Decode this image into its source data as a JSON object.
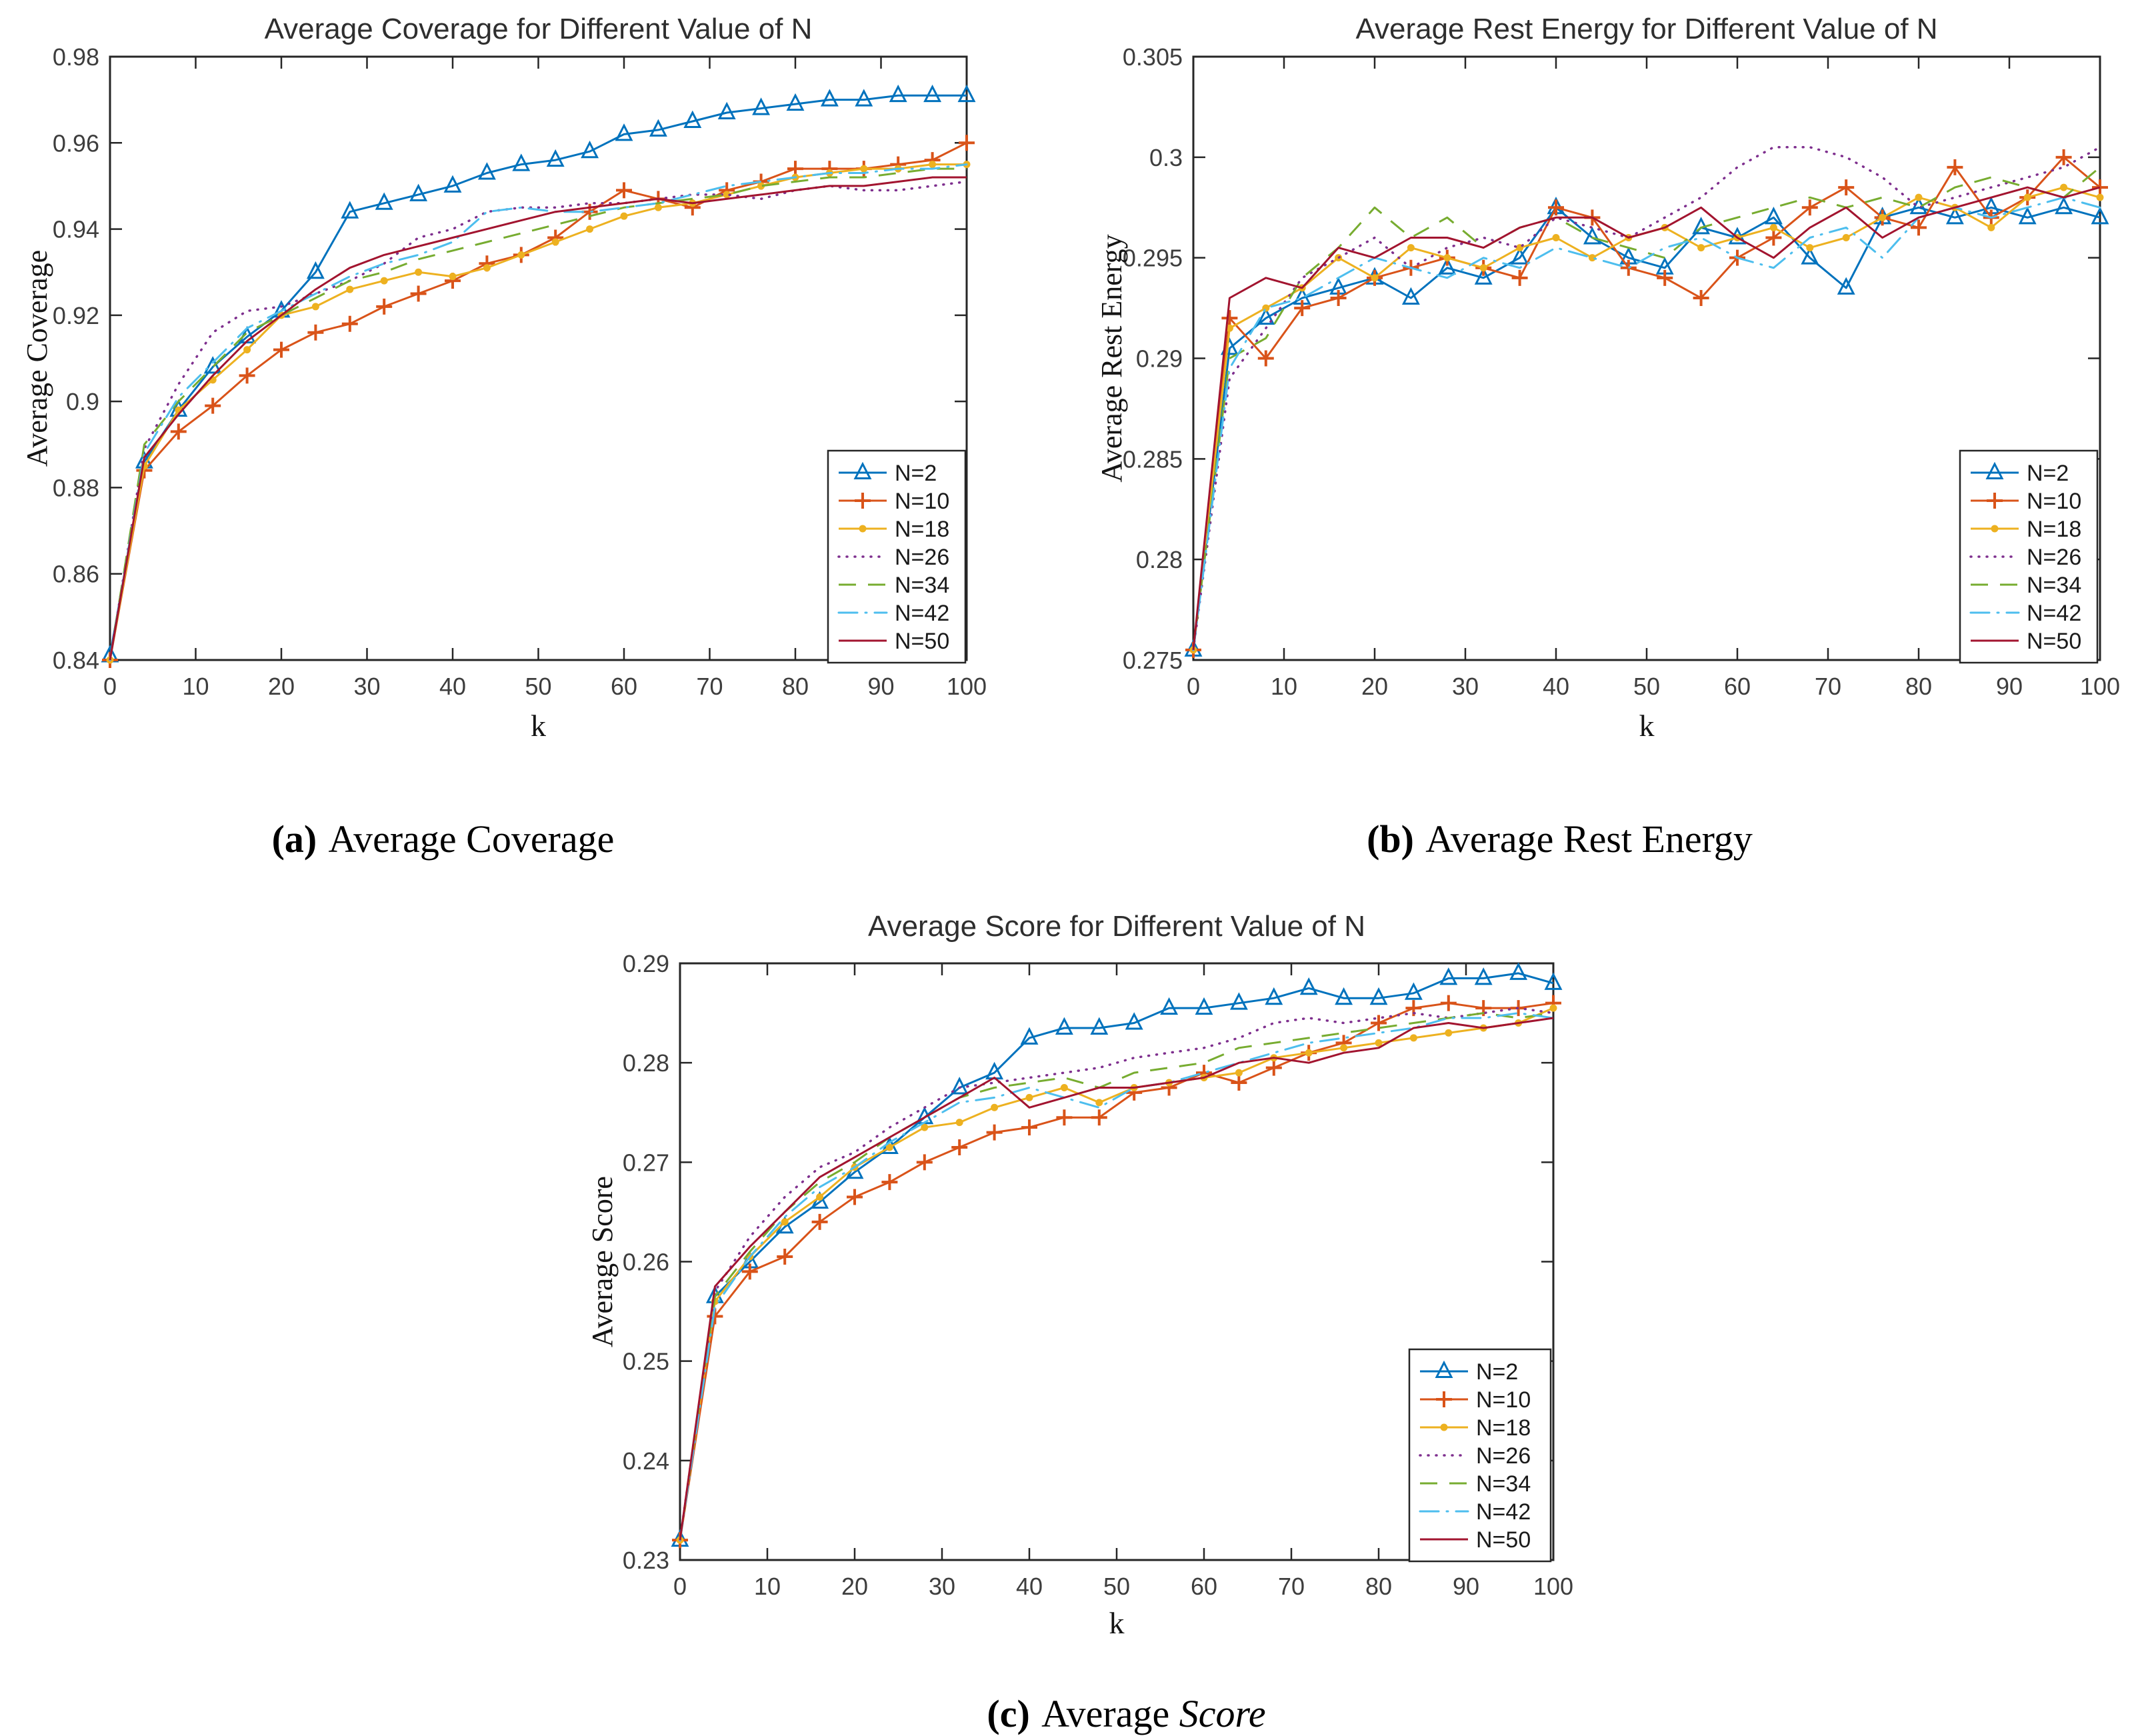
{
  "page": {
    "background": "#ffffff"
  },
  "chart_data": [
    {
      "type": "line",
      "title": "Average Coverage for Different Value of N",
      "xlabel": "k",
      "ylabel": "Average Coverage",
      "caption": {
        "label": "(a)",
        "text": " Average Coverage",
        "italic": ""
      },
      "xlim": [
        0,
        100
      ],
      "ylim": [
        0.84,
        0.98
      ],
      "xticks": [
        0,
        10,
        20,
        30,
        40,
        50,
        60,
        70,
        80,
        90,
        100
      ],
      "yticks": [
        0.84,
        0.86,
        0.88,
        0.9,
        0.92,
        0.94,
        0.96,
        0.98
      ],
      "ytick_labels": [
        "0.84",
        "0.86",
        "0.88",
        "0.9",
        "0.92",
        "0.94",
        "0.96",
        "0.98"
      ],
      "grid": false,
      "legend_position": "lower right inset",
      "x": [
        0,
        4,
        8,
        12,
        16,
        20,
        24,
        28,
        32,
        36,
        40,
        44,
        48,
        52,
        56,
        60,
        64,
        68,
        72,
        76,
        80,
        84,
        88,
        92,
        96,
        100
      ],
      "series": [
        {
          "name": "N=2",
          "color": "#0072BD",
          "line": "solid",
          "marker": "triangle",
          "values": [
            0.841,
            0.886,
            0.898,
            0.908,
            0.915,
            0.921,
            0.93,
            0.944,
            0.946,
            0.948,
            0.95,
            0.953,
            0.955,
            0.956,
            0.958,
            0.962,
            0.963,
            0.965,
            0.967,
            0.968,
            0.969,
            0.97,
            0.97,
            0.971,
            0.971,
            0.971
          ]
        },
        {
          "name": "N=10",
          "color": "#D95319",
          "line": "solid",
          "marker": "plus",
          "values": [
            0.84,
            0.884,
            0.893,
            0.899,
            0.906,
            0.912,
            0.916,
            0.918,
            0.922,
            0.925,
            0.928,
            0.932,
            0.934,
            0.938,
            0.944,
            0.949,
            0.947,
            0.945,
            0.949,
            0.951,
            0.954,
            0.954,
            0.954,
            0.955,
            0.956,
            0.96
          ]
        },
        {
          "name": "N=18",
          "color": "#EDB120",
          "line": "solid",
          "marker": "dot",
          "values": [
            0.84,
            0.885,
            0.898,
            0.905,
            0.912,
            0.92,
            0.922,
            0.926,
            0.928,
            0.93,
            0.929,
            0.931,
            0.934,
            0.937,
            0.94,
            0.943,
            0.945,
            0.946,
            0.948,
            0.95,
            0.952,
            0.953,
            0.954,
            0.954,
            0.955,
            0.955
          ]
        },
        {
          "name": "N=26",
          "color": "#7E2F8E",
          "line": "dotted",
          "marker": "none",
          "values": [
            0.84,
            0.889,
            0.904,
            0.916,
            0.921,
            0.922,
            0.925,
            0.928,
            0.932,
            0.938,
            0.94,
            0.944,
            0.945,
            0.945,
            0.946,
            0.946,
            0.947,
            0.948,
            0.948,
            0.947,
            0.949,
            0.95,
            0.949,
            0.949,
            0.95,
            0.951
          ]
        },
        {
          "name": "N=34",
          "color": "#77AC30",
          "line": "dashed",
          "marker": "none",
          "values": [
            0.84,
            0.89,
            0.9,
            0.908,
            0.916,
            0.92,
            0.924,
            0.928,
            0.93,
            0.933,
            0.935,
            0.937,
            0.939,
            0.941,
            0.943,
            0.945,
            0.946,
            0.947,
            0.948,
            0.95,
            0.951,
            0.952,
            0.952,
            0.953,
            0.954,
            0.954
          ]
        },
        {
          "name": "N=42",
          "color": "#4DBEEE",
          "line": "dashdot",
          "marker": "none",
          "values": [
            0.84,
            0.888,
            0.901,
            0.909,
            0.917,
            0.921,
            0.925,
            0.929,
            0.932,
            0.934,
            0.937,
            0.944,
            0.945,
            0.944,
            0.944,
            0.945,
            0.946,
            0.948,
            0.95,
            0.951,
            0.952,
            0.953,
            0.953,
            0.954,
            0.954,
            0.955
          ]
        },
        {
          "name": "N=50",
          "color": "#A2142F",
          "line": "solid",
          "marker": "none",
          "values": [
            0.84,
            0.887,
            0.897,
            0.906,
            0.914,
            0.92,
            0.926,
            0.931,
            0.934,
            0.936,
            0.938,
            0.94,
            0.942,
            0.944,
            0.945,
            0.946,
            0.947,
            0.946,
            0.947,
            0.948,
            0.949,
            0.95,
            0.95,
            0.951,
            0.952,
            0.952
          ]
        }
      ]
    },
    {
      "type": "line",
      "title": "Average Rest Energy for Different Value of N",
      "xlabel": "k",
      "ylabel": "Average Rest Energy",
      "caption": {
        "label": "(b)",
        "text": " Average Rest Energy",
        "italic": ""
      },
      "xlim": [
        0,
        100
      ],
      "ylim": [
        0.275,
        0.305
      ],
      "xticks": [
        0,
        10,
        20,
        30,
        40,
        50,
        60,
        70,
        80,
        90,
        100
      ],
      "yticks": [
        0.275,
        0.28,
        0.285,
        0.29,
        0.295,
        0.3,
        0.305
      ],
      "ytick_labels": [
        "0.275",
        "0.28",
        "0.285",
        "0.29",
        "0.295",
        "0.3",
        "0.305"
      ],
      "grid": false,
      "legend_position": "lower right inset",
      "x": [
        0,
        4,
        8,
        12,
        16,
        20,
        24,
        28,
        32,
        36,
        40,
        44,
        48,
        52,
        56,
        60,
        64,
        68,
        72,
        76,
        80,
        84,
        88,
        92,
        96,
        100
      ],
      "series": [
        {
          "name": "N=2",
          "color": "#0072BD",
          "line": "solid",
          "marker": "triangle",
          "values": [
            0.2755,
            0.2905,
            0.292,
            0.293,
            0.2935,
            0.294,
            0.293,
            0.2945,
            0.294,
            0.295,
            0.2975,
            0.296,
            0.295,
            0.2945,
            0.2965,
            0.296,
            0.297,
            0.295,
            0.2935,
            0.297,
            0.2975,
            0.297,
            0.2975,
            0.297,
            0.2975,
            0.297
          ]
        },
        {
          "name": "N=10",
          "color": "#D95319",
          "line": "solid",
          "marker": "plus",
          "values": [
            0.2755,
            0.292,
            0.29,
            0.2925,
            0.293,
            0.294,
            0.2945,
            0.295,
            0.2945,
            0.294,
            0.2975,
            0.297,
            0.2945,
            0.294,
            0.293,
            0.295,
            0.296,
            0.2975,
            0.2985,
            0.297,
            0.2965,
            0.2995,
            0.297,
            0.298,
            0.3,
            0.2985
          ]
        },
        {
          "name": "N=18",
          "color": "#EDB120",
          "line": "solid",
          "marker": "dot",
          "values": [
            0.2755,
            0.2915,
            0.2925,
            0.2935,
            0.295,
            0.294,
            0.2955,
            0.295,
            0.2945,
            0.2955,
            0.296,
            0.295,
            0.296,
            0.2965,
            0.2955,
            0.296,
            0.2965,
            0.2955,
            0.296,
            0.297,
            0.298,
            0.2975,
            0.2965,
            0.298,
            0.2985,
            0.298
          ]
        },
        {
          "name": "N=26",
          "color": "#7E2F8E",
          "line": "dotted",
          "marker": "none",
          "values": [
            0.2755,
            0.289,
            0.2915,
            0.294,
            0.295,
            0.296,
            0.2945,
            0.2955,
            0.296,
            0.2955,
            0.297,
            0.2965,
            0.296,
            0.297,
            0.298,
            0.2995,
            0.3005,
            0.3005,
            0.3,
            0.299,
            0.2975,
            0.298,
            0.2985,
            0.299,
            0.2995,
            0.3005
          ]
        },
        {
          "name": "N=34",
          "color": "#77AC30",
          "line": "dashed",
          "marker": "none",
          "values": [
            0.2755,
            0.29,
            0.291,
            0.294,
            0.2955,
            0.2975,
            0.296,
            0.297,
            0.2955,
            0.2965,
            0.297,
            0.296,
            0.2955,
            0.295,
            0.2965,
            0.297,
            0.2975,
            0.298,
            0.2975,
            0.298,
            0.2975,
            0.2985,
            0.299,
            0.2985,
            0.298,
            0.2995
          ]
        },
        {
          "name": "N=42",
          "color": "#4DBEEE",
          "line": "dashdot",
          "marker": "none",
          "values": [
            0.2755,
            0.2895,
            0.2925,
            0.293,
            0.294,
            0.295,
            0.2945,
            0.294,
            0.295,
            0.2945,
            0.2955,
            0.295,
            0.2945,
            0.2955,
            0.296,
            0.295,
            0.2945,
            0.296,
            0.2965,
            0.295,
            0.297,
            0.2975,
            0.297,
            0.2975,
            0.298,
            0.2975
          ]
        },
        {
          "name": "N=50",
          "color": "#A2142F",
          "line": "solid",
          "marker": "none",
          "values": [
            0.2755,
            0.293,
            0.294,
            0.2935,
            0.2955,
            0.295,
            0.296,
            0.296,
            0.2955,
            0.2965,
            0.297,
            0.297,
            0.296,
            0.2965,
            0.2975,
            0.296,
            0.295,
            0.2965,
            0.2975,
            0.296,
            0.297,
            0.2975,
            0.298,
            0.2985,
            0.298,
            0.2985
          ]
        }
      ]
    },
    {
      "type": "line",
      "title": "Average Score for Different Value of N",
      "xlabel": "k",
      "ylabel": "Average Score",
      "caption": {
        "label": "(c)",
        "text": " Average ",
        "italic": "Score"
      },
      "xlim": [
        0,
        100
      ],
      "ylim": [
        0.23,
        0.29
      ],
      "xticks": [
        0,
        10,
        20,
        30,
        40,
        50,
        60,
        70,
        80,
        90,
        100
      ],
      "yticks": [
        0.23,
        0.24,
        0.25,
        0.26,
        0.27,
        0.28,
        0.29
      ],
      "ytick_labels": [
        "0.23",
        "0.24",
        "0.25",
        "0.26",
        "0.27",
        "0.28",
        "0.29"
      ],
      "grid": false,
      "legend_position": "lower right inset",
      "x": [
        0,
        4,
        8,
        12,
        16,
        20,
        24,
        28,
        32,
        36,
        40,
        44,
        48,
        52,
        56,
        60,
        64,
        68,
        72,
        76,
        80,
        84,
        88,
        92,
        96,
        100
      ],
      "series": [
        {
          "name": "N=2",
          "color": "#0072BD",
          "line": "solid",
          "marker": "triangle",
          "values": [
            0.232,
            0.2565,
            0.26,
            0.2635,
            0.266,
            0.269,
            0.2715,
            0.2745,
            0.2775,
            0.279,
            0.2825,
            0.2835,
            0.2835,
            0.284,
            0.2855,
            0.2855,
            0.286,
            0.2865,
            0.2875,
            0.2865,
            0.2865,
            0.287,
            0.2885,
            0.2885,
            0.289,
            0.288
          ]
        },
        {
          "name": "N=10",
          "color": "#D95319",
          "line": "solid",
          "marker": "plus",
          "values": [
            0.232,
            0.2545,
            0.259,
            0.2605,
            0.264,
            0.2665,
            0.268,
            0.27,
            0.2715,
            0.273,
            0.2735,
            0.2745,
            0.2745,
            0.277,
            0.2775,
            0.279,
            0.278,
            0.2795,
            0.281,
            0.282,
            0.284,
            0.2855,
            0.286,
            0.2855,
            0.2855,
            0.286
          ]
        },
        {
          "name": "N=18",
          "color": "#EDB120",
          "line": "solid",
          "marker": "dot",
          "values": [
            0.232,
            0.256,
            0.2605,
            0.264,
            0.2665,
            0.2695,
            0.2715,
            0.2735,
            0.274,
            0.2755,
            0.2765,
            0.2775,
            0.276,
            0.2775,
            0.278,
            0.2785,
            0.279,
            0.2805,
            0.281,
            0.2815,
            0.282,
            0.2825,
            0.283,
            0.2835,
            0.284,
            0.2855
          ]
        },
        {
          "name": "N=26",
          "color": "#7E2F8E",
          "line": "dotted",
          "marker": "none",
          "values": [
            0.232,
            0.257,
            0.2625,
            0.2665,
            0.2695,
            0.271,
            0.2735,
            0.2755,
            0.2775,
            0.278,
            0.2785,
            0.279,
            0.2795,
            0.2805,
            0.281,
            0.2815,
            0.2825,
            0.284,
            0.2845,
            0.284,
            0.2845,
            0.285,
            0.2845,
            0.285,
            0.2855,
            0.285
          ]
        },
        {
          "name": "N=34",
          "color": "#77AC30",
          "line": "dashed",
          "marker": "none",
          "values": [
            0.232,
            0.2565,
            0.261,
            0.265,
            0.268,
            0.27,
            0.2725,
            0.2745,
            0.2765,
            0.2775,
            0.278,
            0.2785,
            0.2775,
            0.279,
            0.2795,
            0.28,
            0.2815,
            0.282,
            0.2825,
            0.283,
            0.2835,
            0.284,
            0.2845,
            0.285,
            0.2845,
            0.285
          ]
        },
        {
          "name": "N=42",
          "color": "#4DBEEE",
          "line": "dashdot",
          "marker": "none",
          "values": [
            0.232,
            0.2555,
            0.2605,
            0.2645,
            0.2675,
            0.2695,
            0.272,
            0.274,
            0.276,
            0.2765,
            0.2775,
            0.2765,
            0.2755,
            0.2775,
            0.278,
            0.279,
            0.28,
            0.281,
            0.282,
            0.2825,
            0.283,
            0.2835,
            0.2845,
            0.2845,
            0.285,
            0.2845
          ]
        },
        {
          "name": "N=50",
          "color": "#A2142F",
          "line": "solid",
          "marker": "none",
          "values": [
            0.232,
            0.2575,
            0.2615,
            0.265,
            0.2685,
            0.2705,
            0.2725,
            0.2745,
            0.2765,
            0.2785,
            0.2755,
            0.2765,
            0.2775,
            0.2775,
            0.278,
            0.2785,
            0.28,
            0.2805,
            0.28,
            0.281,
            0.2815,
            0.2835,
            0.284,
            0.2835,
            0.284,
            0.2845
          ]
        }
      ]
    }
  ]
}
